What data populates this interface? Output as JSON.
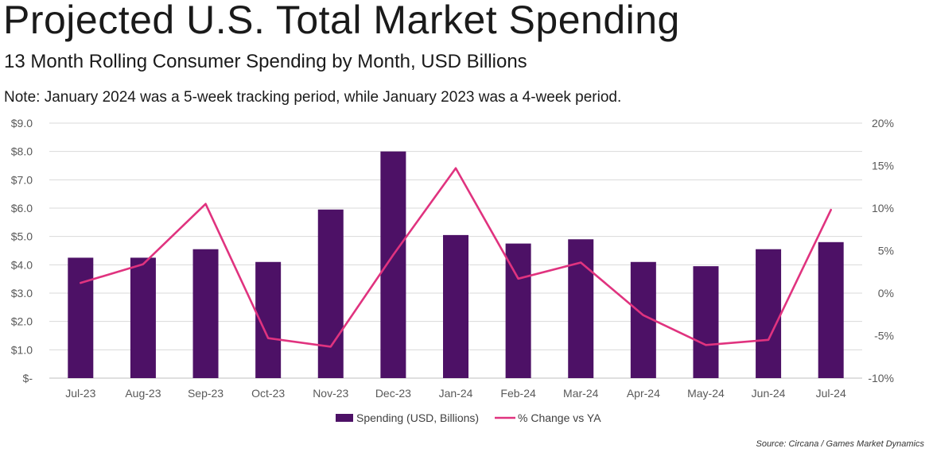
{
  "header": {
    "title": "Projected U.S. Total Market Spending",
    "subtitle": "13 Month Rolling Consumer Spending by Month, USD Billions",
    "note": "Note: January 2024 was a 5-week tracking period, while January 2023 was a 4-week period."
  },
  "footer": {
    "source": "Source: Circana / Games Market Dynamics"
  },
  "chart_data": {
    "type": "bar",
    "title": "Projected U.S. Total Market Spending",
    "xlabel": "",
    "ylabel": "",
    "categories": [
      "Jul-23",
      "Aug-23",
      "Sep-23",
      "Oct-23",
      "Nov-23",
      "Dec-23",
      "Jan-24",
      "Feb-24",
      "Mar-24",
      "Apr-24",
      "May-24",
      "Jun-24",
      "Jul-24"
    ],
    "series": [
      {
        "name": "Spending (USD, Billions)",
        "type": "bar",
        "axis": "left",
        "color": "#4d1166",
        "values": [
          4.25,
          4.25,
          4.55,
          4.1,
          5.95,
          8.0,
          5.05,
          4.75,
          4.9,
          4.1,
          3.95,
          4.55,
          4.8
        ]
      },
      {
        "name": "% Change vs YA",
        "type": "line",
        "axis": "right",
        "color": "#e0337f",
        "values": [
          1.2,
          3.4,
          10.5,
          -5.3,
          -6.3,
          4.5,
          14.7,
          1.7,
          3.6,
          -2.6,
          -6.1,
          -5.5,
          9.8
        ]
      }
    ],
    "ylim": [
      0,
      9
    ],
    "y_ticks": [
      {
        "value": 0,
        "label": "$-"
      },
      {
        "value": 1,
        "label": "$1.0"
      },
      {
        "value": 2,
        "label": "$2.0"
      },
      {
        "value": 3,
        "label": "$3.0"
      },
      {
        "value": 4,
        "label": "$4.0"
      },
      {
        "value": 5,
        "label": "$5.0"
      },
      {
        "value": 6,
        "label": "$6.0"
      },
      {
        "value": 7,
        "label": "$7.0"
      },
      {
        "value": 8,
        "label": "$8.0"
      },
      {
        "value": 9,
        "label": "$9.0"
      }
    ],
    "y2lim": [
      -10,
      20
    ],
    "y2_ticks": [
      {
        "value": -10,
        "label": "-10%"
      },
      {
        "value": -5,
        "label": "-5%"
      },
      {
        "value": 0,
        "label": "0%"
      },
      {
        "value": 5,
        "label": "5%"
      },
      {
        "value": 10,
        "label": "10%"
      },
      {
        "value": 15,
        "label": "15%"
      },
      {
        "value": 20,
        "label": "20%"
      }
    ],
    "grid": true,
    "legend_position": "bottom-center",
    "gridline_color": "#d9d9d9"
  }
}
